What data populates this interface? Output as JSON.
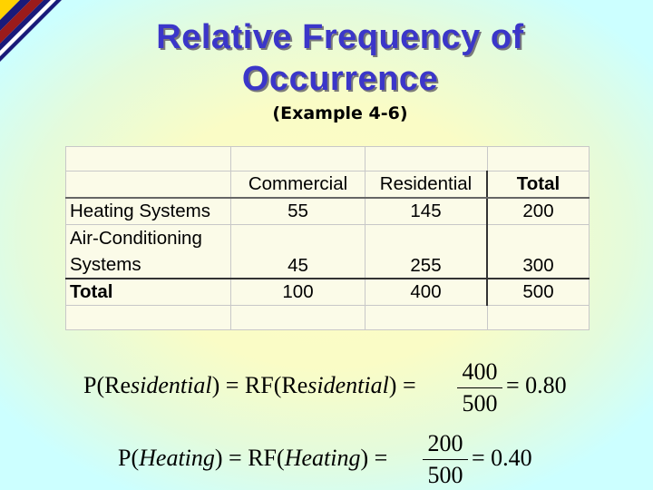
{
  "title_line1": "Relative Frequency of",
  "title_line2": "Occurrence",
  "subtitle": "(Example 4-6)",
  "table": {
    "headers": [
      "",
      "Commercial",
      "Residential",
      "Total"
    ],
    "rows": [
      {
        "label": "Heating Systems",
        "values": [
          "55",
          "145",
          "200"
        ]
      },
      {
        "label_line1": "Air-Conditioning",
        "label_line2": "Systems",
        "values": [
          "45",
          "255",
          "300"
        ]
      },
      {
        "label": "Total",
        "values": [
          "100",
          "400",
          "500"
        ]
      }
    ]
  },
  "equations": [
    {
      "lhs_p": "P(Re",
      "lhs_word": "sidential",
      "lhs_close": ") = RF",
      "mid_open": "(Re",
      "mid_word": "sidential",
      "mid_close": ") =",
      "numerator": "400",
      "denominator": "500",
      "result": "= 0.80"
    },
    {
      "lhs_p": "P(",
      "lhs_word": "Heating",
      "lhs_close": ") = RF",
      "mid_open": "(",
      "mid_word": "Heating",
      "mid_close": ") =",
      "numerator": "200",
      "denominator": "500",
      "result": "= 0.40"
    }
  ],
  "colors": {
    "background": "#ccffff",
    "title": "#3b36c9",
    "corner_red": "#9b1b1b",
    "corner_yellow": "#ffd200",
    "corner_navy": "#1a1a7a"
  }
}
